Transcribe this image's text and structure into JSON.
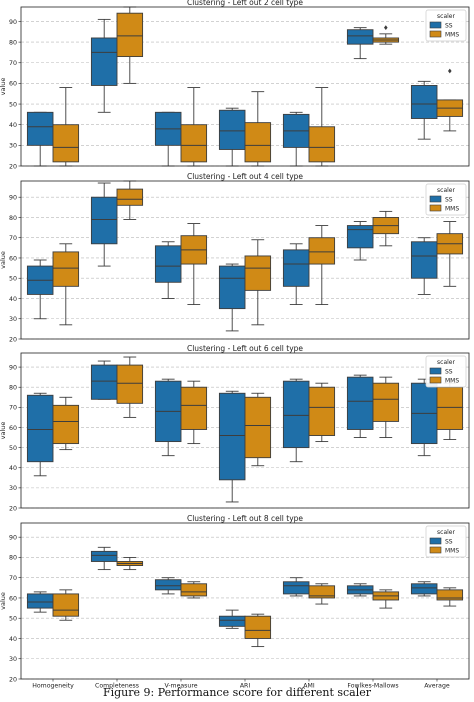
{
  "caption": "Figure 9: Performance score for different scaler",
  "colors": {
    "SS": "#1f6fa8",
    "MMS": "#d08a16"
  },
  "chart_data": [
    {
      "type": "box",
      "title": "Clustering - Left out 2 cell type",
      "ylabel": "value",
      "ylim": [
        20,
        97
      ],
      "yticks": [
        20,
        30,
        40,
        50,
        60,
        70,
        80,
        90
      ],
      "grid": "y-dashed",
      "legend": {
        "title": "scaler",
        "entries": [
          "SS",
          "MMS"
        ],
        "position": "top-right"
      },
      "categories": [
        "Homogeneity",
        "Completeness",
        "V-measure",
        "ARI",
        "AMI",
        "Fowlkes-Mallows",
        "Average"
      ],
      "series": [
        {
          "name": "SS",
          "boxes": [
            {
              "wl": 20,
              "q1": 30,
              "med": 39,
              "q3": 46,
              "wh": 46
            },
            {
              "wl": 46,
              "q1": 59,
              "med": 75,
              "q3": 82,
              "wh": 91
            },
            {
              "wl": 20,
              "q1": 30,
              "med": 38,
              "q3": 46,
              "wh": 46
            },
            {
              "wl": 20,
              "q1": 28,
              "med": 37,
              "q3": 47,
              "wh": 48
            },
            {
              "wl": 20,
              "q1": 29,
              "med": 37,
              "q3": 45,
              "wh": 46
            },
            {
              "wl": 72,
              "q1": 79,
              "med": 83,
              "q3": 86,
              "wh": 87
            },
            {
              "wl": 33,
              "q1": 43,
              "med": 50,
              "q3": 59,
              "wh": 61
            }
          ]
        },
        {
          "name": "MMS",
          "boxes": [
            {
              "wl": 20,
              "q1": 22,
              "med": 29,
              "q3": 40,
              "wh": 58
            },
            {
              "wl": 60,
              "q1": 73,
              "med": 83,
              "q3": 94,
              "wh": 97
            },
            {
              "wl": 20,
              "q1": 22,
              "med": 30,
              "q3": 40,
              "wh": 58
            },
            {
              "wl": 20,
              "q1": 22,
              "med": 30,
              "q3": 41,
              "wh": 56
            },
            {
              "wl": 20,
              "q1": 22,
              "med": 29,
              "q3": 39,
              "wh": 58
            },
            {
              "wl": 79,
              "q1": 80,
              "med": 81,
              "q3": 82,
              "wh": 84,
              "outliers": [
                87
              ]
            },
            {
              "wl": 37,
              "q1": 44,
              "med": 48,
              "q3": 52,
              "wh": 52,
              "outliers": [
                66
              ]
            }
          ]
        }
      ]
    },
    {
      "type": "box",
      "title": "Clustering - Left out 4 cell type",
      "ylabel": "value",
      "ylim": [
        20,
        98
      ],
      "yticks": [
        20,
        30,
        40,
        50,
        60,
        70,
        80,
        90
      ],
      "grid": "y-dashed",
      "legend": {
        "title": "scaler",
        "entries": [
          "SS",
          "MMS"
        ],
        "position": "top-right"
      },
      "categories": [
        "Homogeneity",
        "Completeness",
        "V-measure",
        "ARI",
        "AMI",
        "Fowlkes-Mallows",
        "Average"
      ],
      "series": [
        {
          "name": "SS",
          "boxes": [
            {
              "wl": 30,
              "q1": 42,
              "med": 49,
              "q3": 56,
              "wh": 59
            },
            {
              "wl": 56,
              "q1": 67,
              "med": 79,
              "q3": 90,
              "wh": 97
            },
            {
              "wl": 40,
              "q1": 48,
              "med": 56,
              "q3": 66,
              "wh": 68
            },
            {
              "wl": 24,
              "q1": 35,
              "med": 50,
              "q3": 56,
              "wh": 57
            },
            {
              "wl": 37,
              "q1": 46,
              "med": 57,
              "q3": 64,
              "wh": 67
            },
            {
              "wl": 59,
              "q1": 65,
              "med": 74,
              "q3": 76,
              "wh": 78
            },
            {
              "wl": 42,
              "q1": 50,
              "med": 61,
              "q3": 68,
              "wh": 70
            }
          ]
        },
        {
          "name": "MMS",
          "boxes": [
            {
              "wl": 27,
              "q1": 46,
              "med": 55,
              "q3": 63,
              "wh": 67
            },
            {
              "wl": 79,
              "q1": 86,
              "med": 89,
              "q3": 94,
              "wh": 98
            },
            {
              "wl": 37,
              "q1": 57,
              "med": 64,
              "q3": 71,
              "wh": 77
            },
            {
              "wl": 27,
              "q1": 44,
              "med": 55,
              "q3": 61,
              "wh": 69
            },
            {
              "wl": 37,
              "q1": 57,
              "med": 63,
              "q3": 70,
              "wh": 76
            },
            {
              "wl": 66,
              "q1": 72,
              "med": 76,
              "q3": 80,
              "wh": 83
            },
            {
              "wl": 46,
              "q1": 62,
              "med": 67,
              "q3": 72,
              "wh": 78
            }
          ]
        }
      ]
    },
    {
      "type": "box",
      "title": "Clustering - Left out 6 cell type",
      "ylabel": "value",
      "ylim": [
        20,
        97
      ],
      "yticks": [
        20,
        30,
        40,
        50,
        60,
        70,
        80,
        90
      ],
      "grid": "y-dashed",
      "legend": {
        "title": "scaler",
        "entries": [
          "SS",
          "MMS"
        ],
        "position": "top-right"
      },
      "categories": [
        "Homogeneity",
        "Completeness",
        "V-measure",
        "ARI",
        "AMI",
        "Fowlkes-Mallows",
        "Average"
      ],
      "series": [
        {
          "name": "SS",
          "boxes": [
            {
              "wl": 36,
              "q1": 43,
              "med": 59,
              "q3": 76,
              "wh": 77
            },
            {
              "wl": 74,
              "q1": 74,
              "med": 83,
              "q3": 91,
              "wh": 93
            },
            {
              "wl": 46,
              "q1": 53,
              "med": 68,
              "q3": 83,
              "wh": 84
            },
            {
              "wl": 23,
              "q1": 34,
              "med": 56,
              "q3": 77,
              "wh": 78
            },
            {
              "wl": 43,
              "q1": 50,
              "med": 66,
              "q3": 83,
              "wh": 84
            },
            {
              "wl": 55,
              "q1": 59,
              "med": 73,
              "q3": 85,
              "wh": 86
            },
            {
              "wl": 46,
              "q1": 52,
              "med": 67,
              "q3": 82,
              "wh": 84
            }
          ]
        },
        {
          "name": "MMS",
          "boxes": [
            {
              "wl": 49,
              "q1": 52,
              "med": 63,
              "q3": 71,
              "wh": 75
            },
            {
              "wl": 65,
              "q1": 72,
              "med": 82,
              "q3": 91,
              "wh": 95
            },
            {
              "wl": 52,
              "q1": 59,
              "med": 71,
              "q3": 80,
              "wh": 83
            },
            {
              "wl": 41,
              "q1": 45,
              "med": 61,
              "q3": 75,
              "wh": 77
            },
            {
              "wl": 53,
              "q1": 56,
              "med": 70,
              "q3": 80,
              "wh": 82
            },
            {
              "wl": 55,
              "q1": 63,
              "med": 74,
              "q3": 82,
              "wh": 85
            },
            {
              "wl": 54,
              "q1": 59,
              "med": 70,
              "q3": 80,
              "wh": 82
            }
          ]
        }
      ]
    },
    {
      "type": "box",
      "title": "Clustering - Left out 8 cell type",
      "ylabel": "value",
      "ylim": [
        20,
        97
      ],
      "yticks": [
        20,
        30,
        40,
        50,
        60,
        70,
        80,
        90
      ],
      "grid": "y-dashed",
      "legend": {
        "title": "scaler",
        "entries": [
          "SS",
          "MMS"
        ],
        "position": "top-right"
      },
      "categories": [
        "Homogeneity",
        "Completeness",
        "V-measure",
        "ARI",
        "AMI",
        "Fowlkes-Mallows",
        "Average"
      ],
      "series": [
        {
          "name": "SS",
          "boxes": [
            {
              "wl": 53,
              "q1": 55,
              "med": 58,
              "q3": 62,
              "wh": 63
            },
            {
              "wl": 74,
              "q1": 78,
              "med": 81,
              "q3": 83,
              "wh": 85
            },
            {
              "wl": 62,
              "q1": 64,
              "med": 66,
              "q3": 69,
              "wh": 70
            },
            {
              "wl": 45,
              "q1": 46,
              "med": 49,
              "q3": 51,
              "wh": 54
            },
            {
              "wl": 61,
              "q1": 62,
              "med": 66,
              "q3": 68,
              "wh": 70
            },
            {
              "wl": 61,
              "q1": 62,
              "med": 64,
              "q3": 66,
              "wh": 67
            },
            {
              "wl": 61,
              "q1": 62,
              "med": 65,
              "q3": 67,
              "wh": 68
            }
          ]
        },
        {
          "name": "MMS",
          "boxes": [
            {
              "wl": 49,
              "q1": 51,
              "med": 54,
              "q3": 62,
              "wh": 64
            },
            {
              "wl": 74,
              "q1": 76,
              "med": 77,
              "q3": 78,
              "wh": 80
            },
            {
              "wl": 60,
              "q1": 61,
              "med": 63,
              "q3": 67,
              "wh": 68
            },
            {
              "wl": 36,
              "q1": 40,
              "med": 44,
              "q3": 51,
              "wh": 52
            },
            {
              "wl": 57,
              "q1": 60,
              "med": 61,
              "q3": 66,
              "wh": 67
            },
            {
              "wl": 55,
              "q1": 59,
              "med": 61,
              "q3": 63,
              "wh": 64
            },
            {
              "wl": 56,
              "q1": 59,
              "med": 60,
              "q3": 64,
              "wh": 65
            }
          ]
        }
      ]
    }
  ]
}
